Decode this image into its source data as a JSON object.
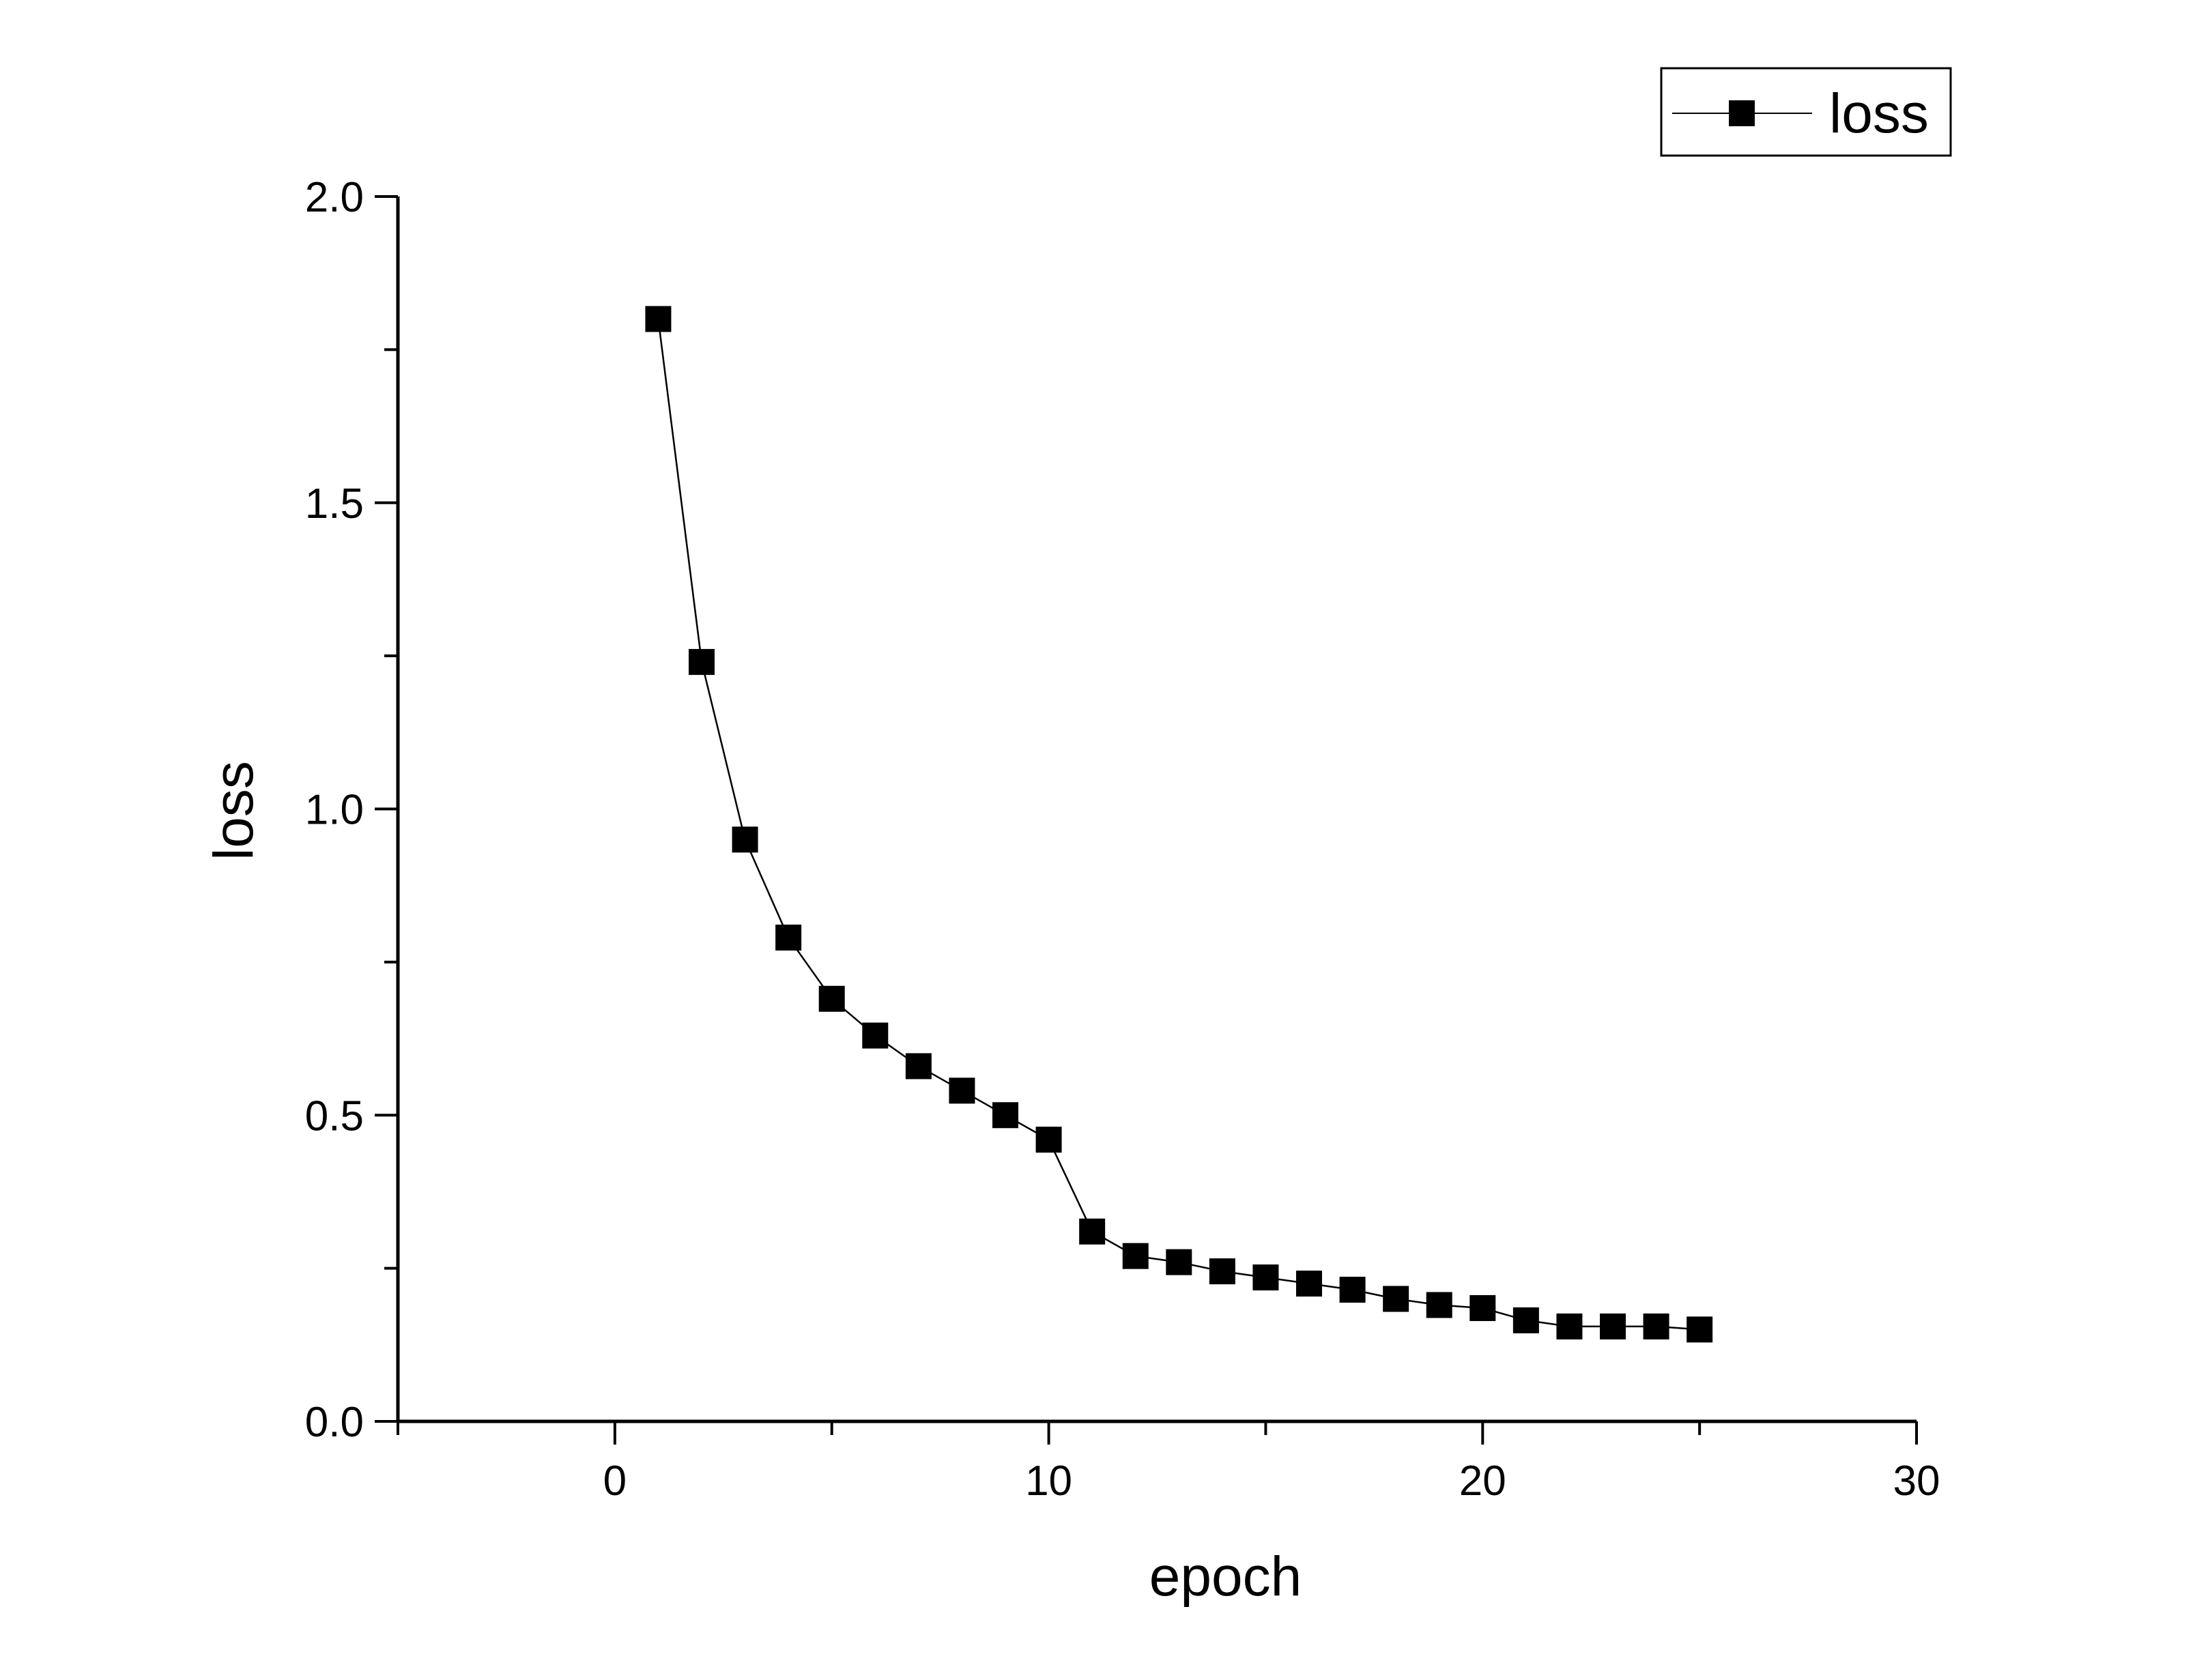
{
  "chart_data": {
    "type": "line",
    "title": "",
    "xlabel": "epoch",
    "ylabel": "loss",
    "xlim": [
      -5,
      30
    ],
    "ylim": [
      0,
      2.0
    ],
    "x_ticks": [
      "0",
      "10",
      "20",
      "30"
    ],
    "y_ticks": [
      "0.0",
      "0.5",
      "1.0",
      "1.5",
      "2.0"
    ],
    "grid": false,
    "legend": {
      "position": "top-right",
      "entries": [
        "loss"
      ]
    },
    "marker": "filled-square",
    "colors": {
      "line": "#000000",
      "marker": "#000000",
      "axis": "#000000"
    },
    "series": [
      {
        "name": "loss",
        "x": [
          1,
          2,
          3,
          4,
          5,
          6,
          7,
          8,
          9,
          10,
          11,
          12,
          13,
          14,
          15,
          16,
          17,
          18,
          19,
          20,
          21,
          22,
          23,
          24,
          25
        ],
        "y": [
          1.8,
          1.24,
          0.95,
          0.79,
          0.69,
          0.63,
          0.58,
          0.54,
          0.5,
          0.46,
          0.31,
          0.27,
          0.26,
          0.245,
          0.235,
          0.225,
          0.215,
          0.2,
          0.19,
          0.185,
          0.165,
          0.155,
          0.155,
          0.155,
          0.15
        ]
      }
    ]
  }
}
